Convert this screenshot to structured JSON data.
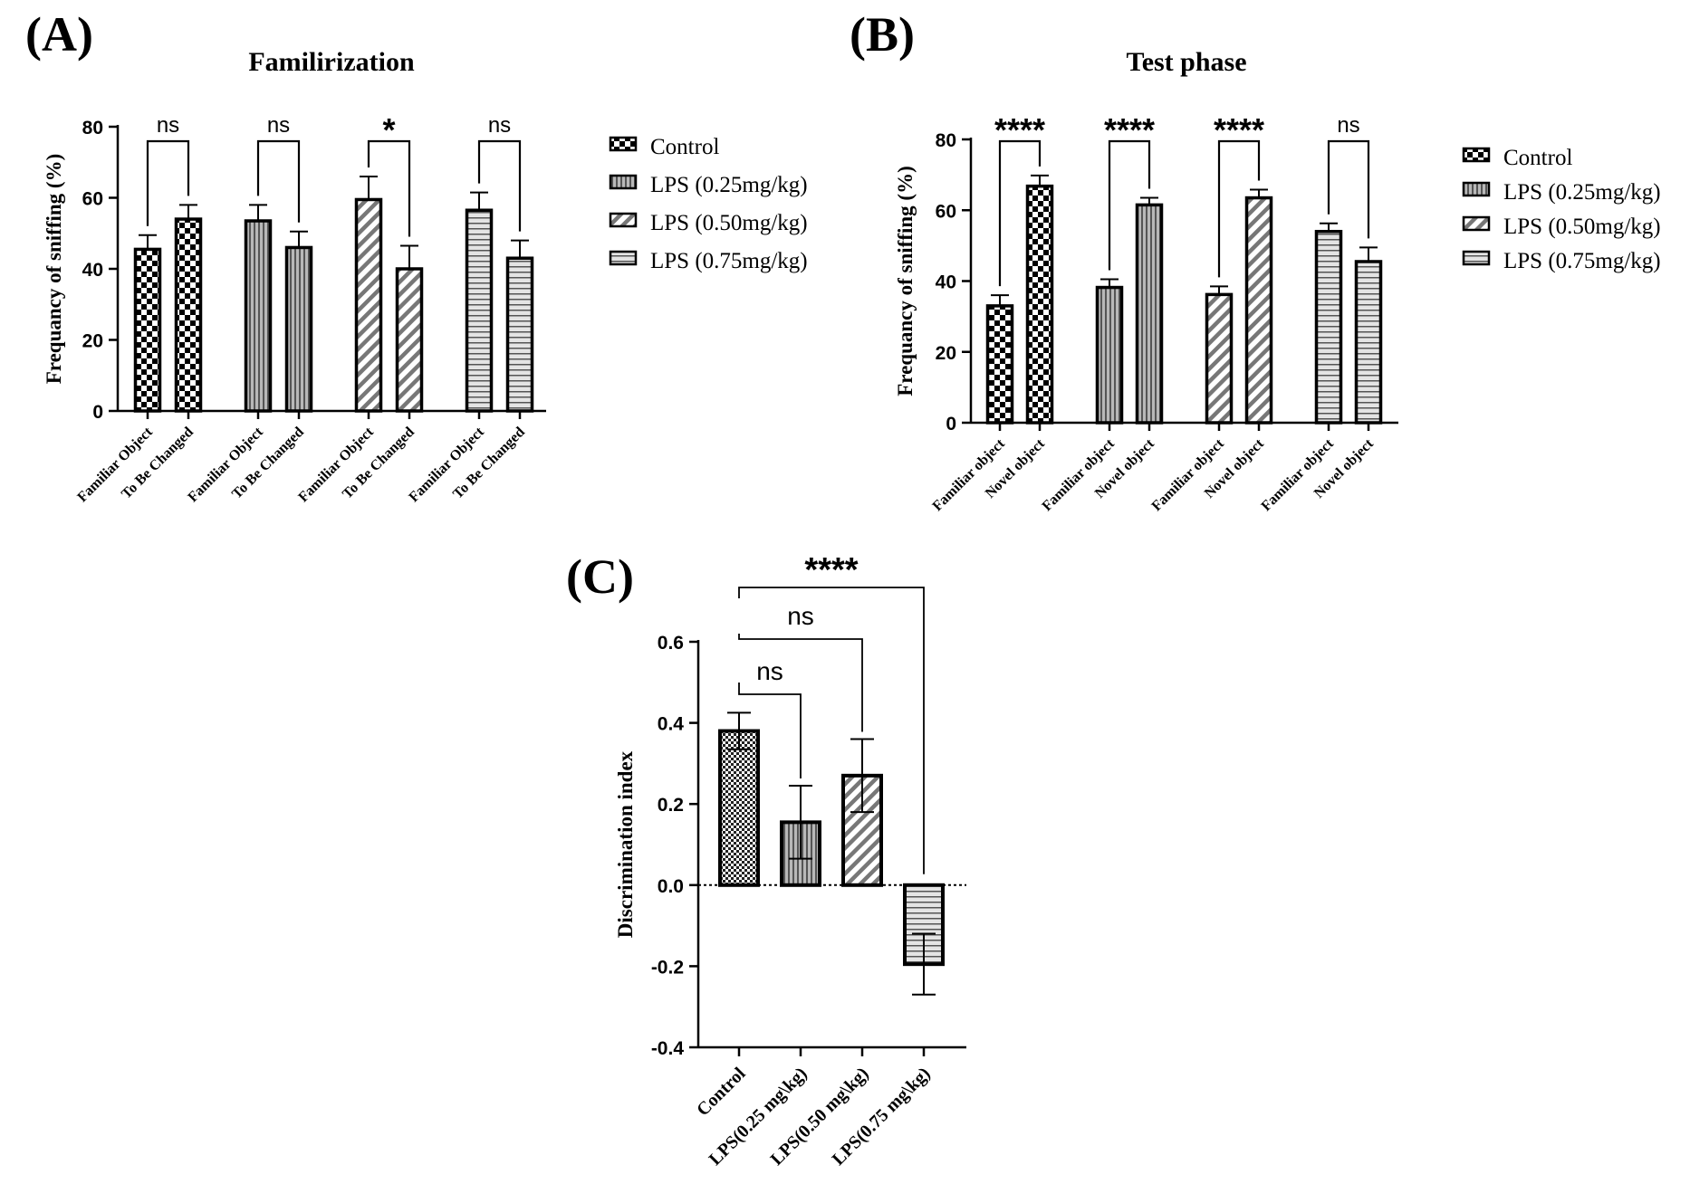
{
  "chart_data": [
    {
      "panel": "(A)",
      "type": "bar",
      "title": "Familirization",
      "ylabel": "Frequancy of sniffing (%)",
      "ylim": [
        0,
        80
      ],
      "yticks": [
        0,
        20,
        40,
        60,
        80
      ],
      "categories": [
        "Familiar Object",
        "To Be Changed",
        "Familiar Object",
        "To Be Changed",
        "Familiar Object",
        "To Be Changed",
        "Familiar Object",
        "To Be Changed"
      ],
      "groups": [
        {
          "name": "Control",
          "pattern": "checker",
          "values": [
            45.5,
            54
          ],
          "errors": [
            4,
            4
          ],
          "sig": "ns"
        },
        {
          "name": "LPS (0.25mg/kg)",
          "pattern": "vertical",
          "values": [
            53.5,
            46
          ],
          "errors": [
            4.5,
            4.5
          ],
          "sig": "ns"
        },
        {
          "name": "LPS (0.50mg/kg)",
          "pattern": "diagonal",
          "values": [
            59.5,
            40
          ],
          "errors": [
            6.5,
            6.5
          ],
          "sig": "*"
        },
        {
          "name": "LPS (0.75mg/kg)",
          "pattern": "horizontal",
          "values": [
            56.5,
            43
          ],
          "errors": [
            5,
            5
          ],
          "sig": "ns"
        }
      ],
      "legend": [
        "Control",
        "LPS (0.25mg/kg)",
        "LPS (0.50mg/kg)",
        "LPS (0.75mg/kg)"
      ],
      "legend_position": "right"
    },
    {
      "panel": "(B)",
      "type": "bar",
      "title": "Test phase",
      "ylabel": "Frequancy of sniffing (%)",
      "ylim": [
        0,
        80
      ],
      "yticks": [
        0,
        20,
        40,
        60,
        80
      ],
      "categories": [
        "Familiar object",
        "Novel object",
        "Familiar object",
        "Novel object",
        "Familiar object",
        "Novel object",
        "Familiar object",
        "Novel object"
      ],
      "groups": [
        {
          "name": "Control",
          "pattern": "checker",
          "values": [
            33,
            66.8
          ],
          "errors": [
            3,
            3
          ],
          "sig": "****"
        },
        {
          "name": "LPS (0.25mg/kg)",
          "pattern": "vertical",
          "values": [
            38.2,
            61.5
          ],
          "errors": [
            2.3,
            2
          ],
          "sig": "****"
        },
        {
          "name": "LPS (0.50mg/kg)",
          "pattern": "diagonal",
          "values": [
            36.2,
            63.5
          ],
          "errors": [
            2.3,
            2.3
          ],
          "sig": "****"
        },
        {
          "name": "LPS (0.75mg/kg)",
          "pattern": "horizontal",
          "values": [
            54,
            45.5
          ],
          "errors": [
            2.3,
            4
          ],
          "sig": "ns"
        }
      ],
      "legend": [
        "Control",
        "LPS (0.25mg/kg)",
        "LPS (0.50mg/kg)",
        "LPS (0.75mg/kg)"
      ],
      "legend_position": "right"
    },
    {
      "panel": "(C)",
      "type": "bar",
      "title": "",
      "ylabel": "Discrimination index",
      "ylim": [
        -0.4,
        0.6
      ],
      "yticks": [
        "-0.4",
        "-0.2",
        "0.0",
        "0.2",
        "0.4",
        "0.6"
      ],
      "categories": [
        "Control",
        "LPS(0.25 mg\\kg)",
        "LPS(0.50 mg\\kg)",
        "LPS(0.75 mg\\kg)"
      ],
      "patterns": [
        "fine-checker",
        "vertical",
        "diagonal",
        "horizontal"
      ],
      "values": [
        0.38,
        0.155,
        0.27,
        -0.195
      ],
      "errors": [
        0.045,
        0.09,
        0.09,
        0.075
      ],
      "comparisons": [
        {
          "from": "Control",
          "to": "LPS(0.25 mg\\kg)",
          "label": "ns"
        },
        {
          "from": "Control",
          "to": "LPS(0.50 mg\\kg)",
          "label": "ns"
        },
        {
          "from": "Control",
          "to": "LPS(0.75 mg\\kg)",
          "label": "****"
        }
      ]
    }
  ]
}
